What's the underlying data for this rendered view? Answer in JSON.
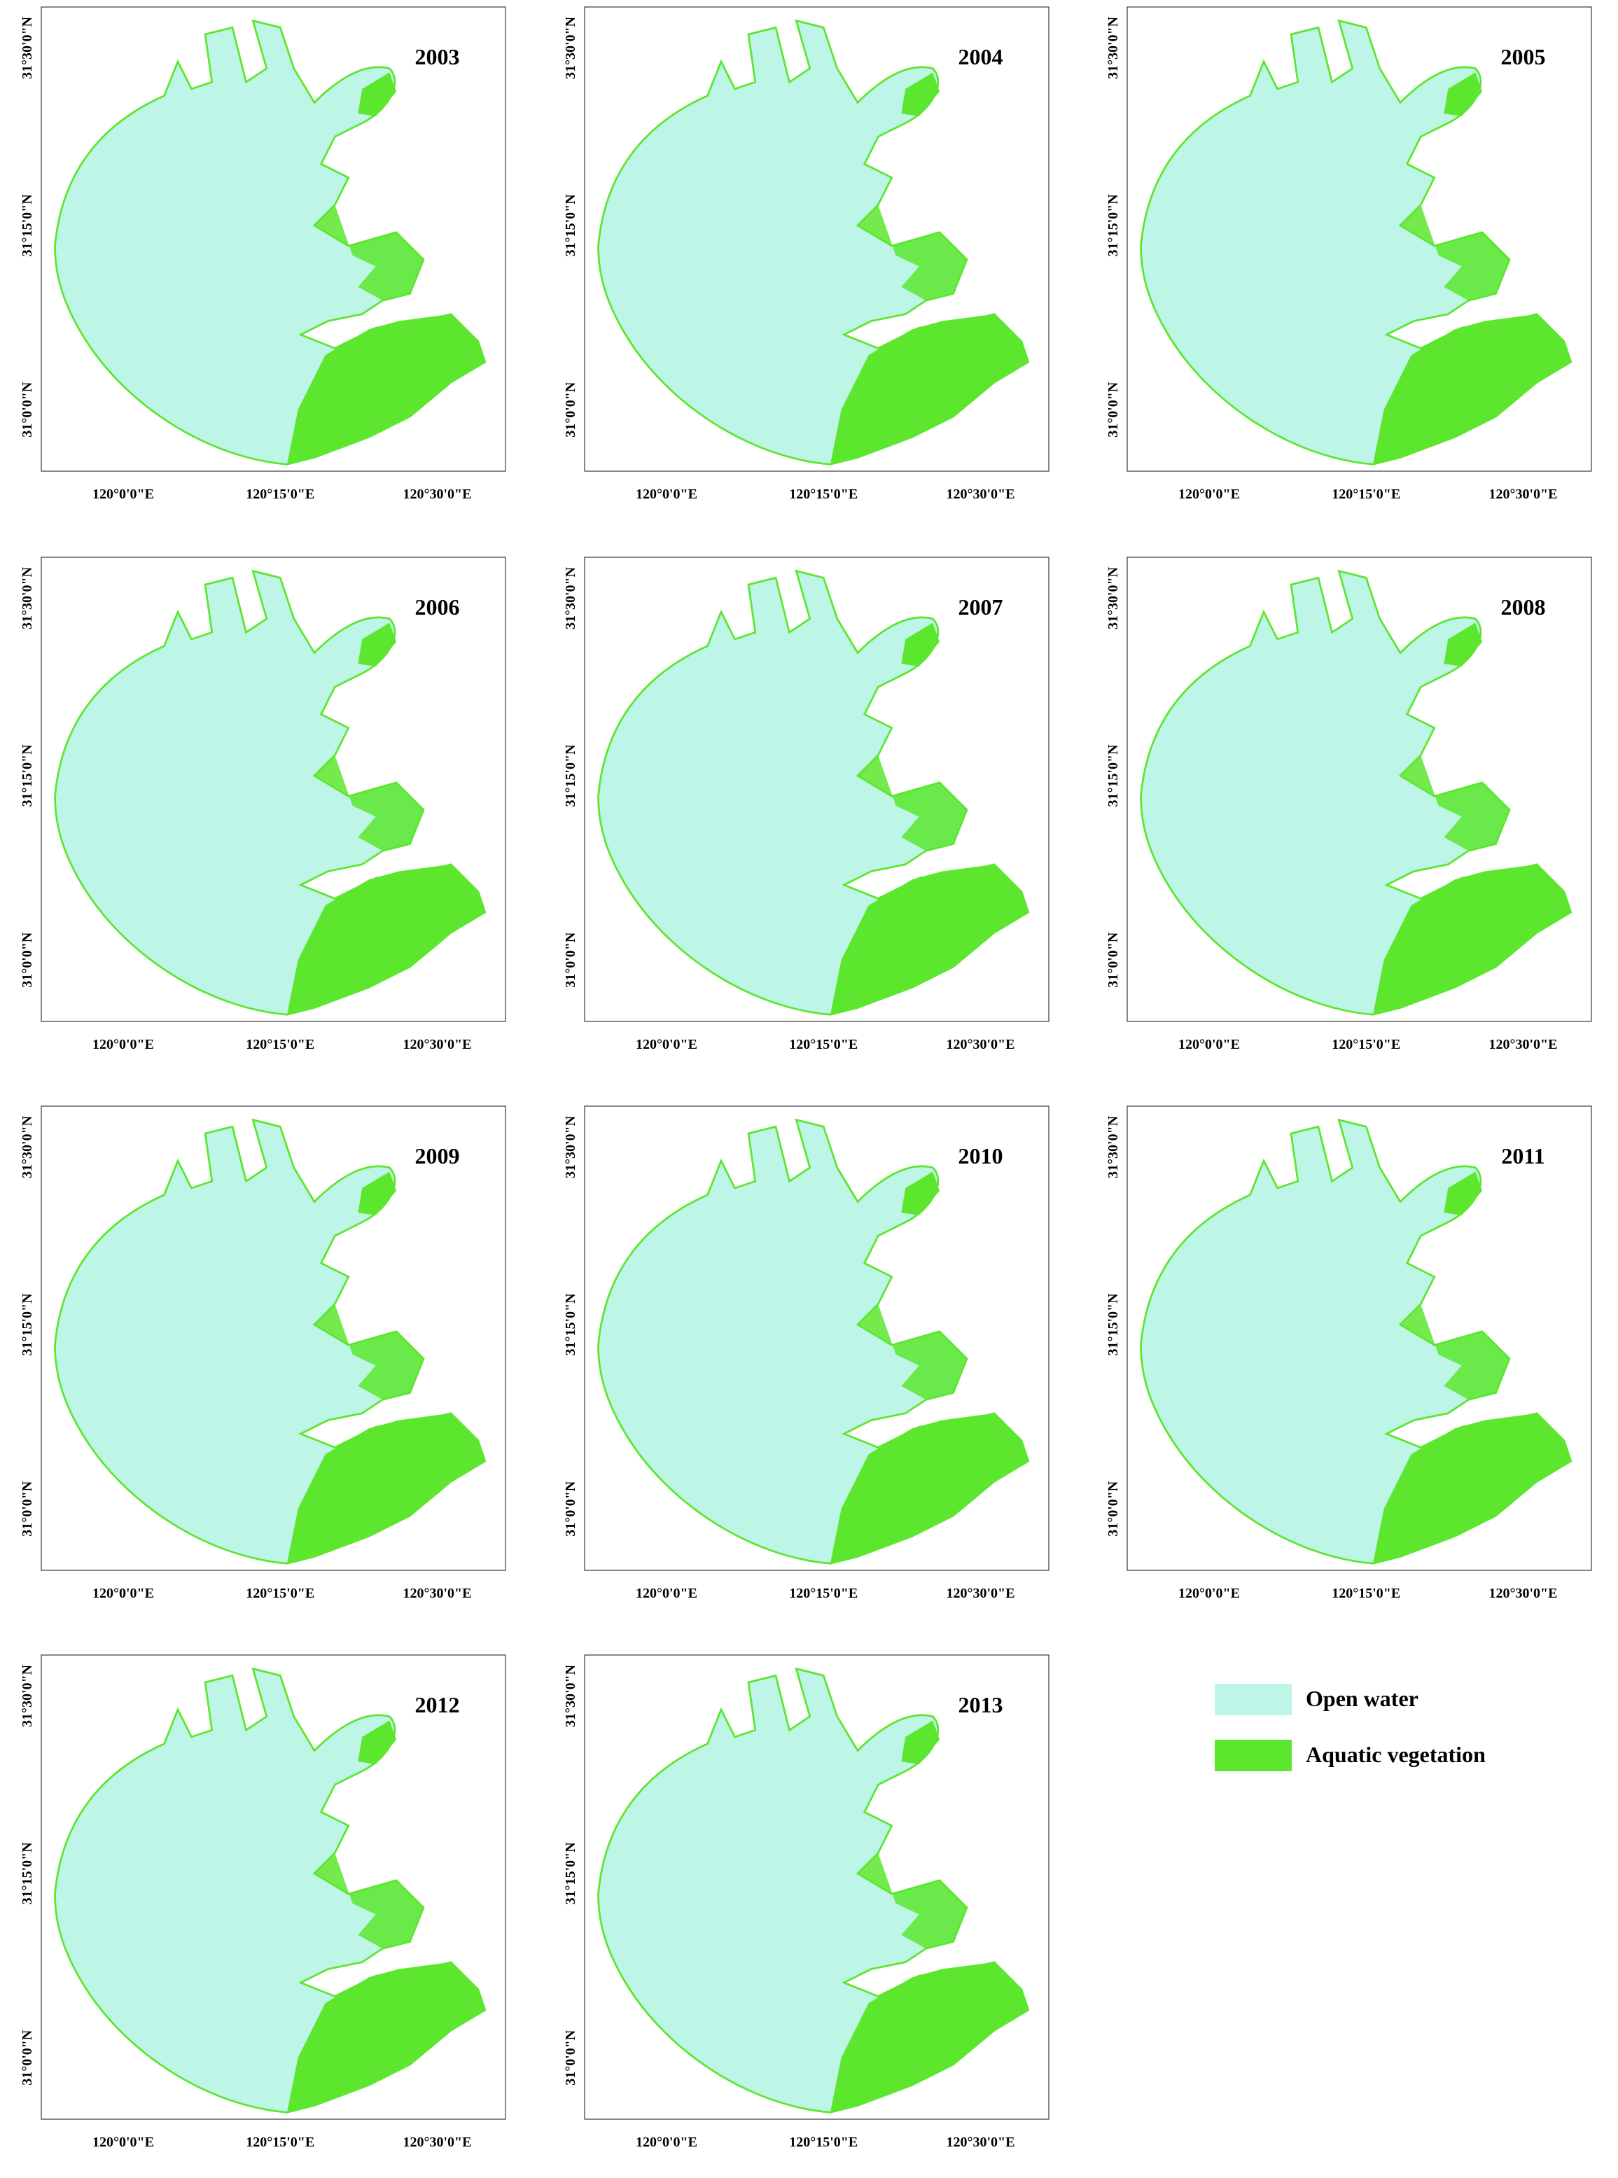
{
  "panels": [
    {
      "year": "2003"
    },
    {
      "year": "2004"
    },
    {
      "year": "2005"
    },
    {
      "year": "2006"
    },
    {
      "year": "2007"
    },
    {
      "year": "2008"
    },
    {
      "year": "2009"
    },
    {
      "year": "2010"
    },
    {
      "year": "2011"
    },
    {
      "year": "2012"
    },
    {
      "year": "2013"
    }
  ],
  "lat_labels": [
    "31°30'0\"N",
    "31°15'0\"N",
    "31°0'0\"N"
  ],
  "lon_labels": [
    "120°0'0\"E",
    "120°15'0\"E",
    "120°30'0\"E"
  ],
  "legend": [
    {
      "label": "Open water",
      "color": "#bdf5e6"
    },
    {
      "label": "Aquatic vegetation",
      "color": "#5ce62e"
    }
  ]
}
